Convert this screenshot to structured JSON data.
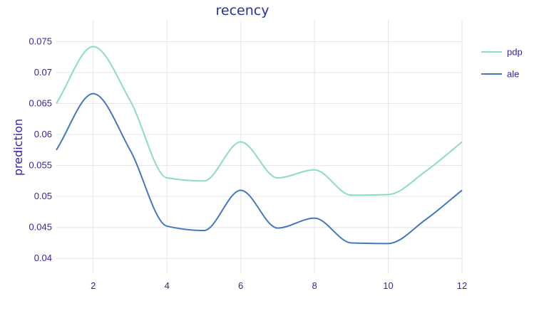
{
  "chart_data": {
    "type": "line",
    "title": "recency",
    "xlabel": "",
    "ylabel": "prediction",
    "xlim": [
      1,
      12
    ],
    "ylim": [
      0.0375,
      0.0785
    ],
    "x_ticks": [
      2,
      4,
      6,
      8,
      10,
      12
    ],
    "x_tick_labels": [
      "2",
      "4",
      "6",
      "8",
      "10",
      "12"
    ],
    "y_ticks": [
      0.04,
      0.045,
      0.05,
      0.055,
      0.06,
      0.065,
      0.07,
      0.075
    ],
    "y_tick_labels": [
      "0.04",
      "0.045",
      "0.05",
      "0.055",
      "0.06",
      "0.065",
      "0.07",
      "0.075"
    ],
    "grid": true,
    "legend_position": "top-right",
    "x": [
      1,
      2,
      3,
      4,
      5,
      6,
      7,
      8,
      9,
      10,
      11,
      12
    ],
    "series": [
      {
        "name": "pdp",
        "color": "#8bdcc6",
        "values": [
          0.065,
          0.0742,
          0.0655,
          0.053,
          0.0525,
          0.0588,
          0.053,
          0.0543,
          0.0502,
          0.0503,
          0.054,
          0.0588
        ]
      },
      {
        "name": "ale",
        "color": "#4378bf",
        "values": [
          0.0575,
          0.0666,
          0.0575,
          0.0452,
          0.0445,
          0.051,
          0.0449,
          0.0465,
          0.0425,
          0.0424,
          0.0462,
          0.051
        ]
      }
    ]
  }
}
